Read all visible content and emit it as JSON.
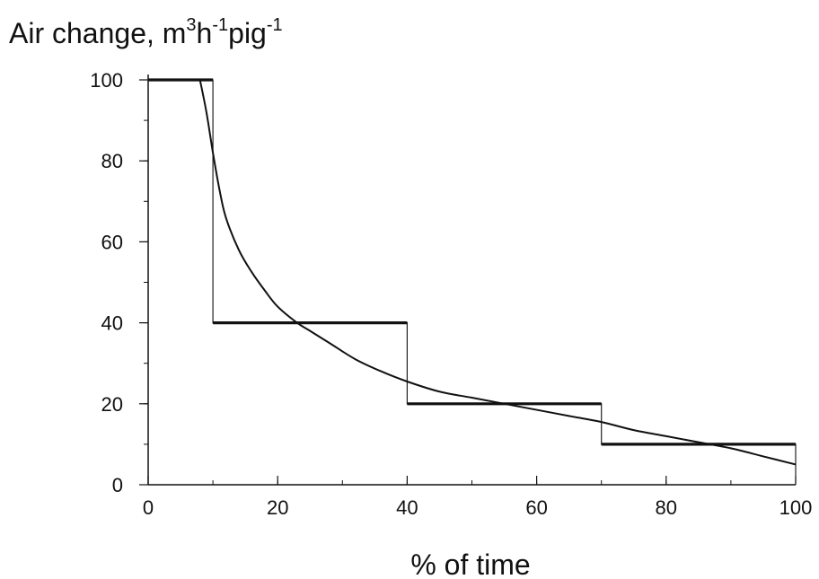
{
  "chart_data": {
    "type": "line",
    "xlabel": "% of time",
    "ylabel": {
      "parts": [
        {
          "text": "Air change, m",
          "sup": false
        },
        {
          "text": "3",
          "sup": true
        },
        {
          "text": "h",
          "sup": false
        },
        {
          "text": "-1",
          "sup": true
        },
        {
          "text": "pig",
          "sup": false
        },
        {
          "text": "-1",
          "sup": true
        }
      ]
    },
    "xlim": [
      0,
      100
    ],
    "ylim": [
      0,
      100
    ],
    "x_ticks": [
      0,
      20,
      40,
      60,
      80,
      100
    ],
    "y_ticks": [
      0,
      20,
      40,
      60,
      80,
      100
    ],
    "x_minor_step": 10,
    "y_minor_step": 10,
    "grid": false,
    "series": [
      {
        "style": "step-thin",
        "x": [
          0,
          10,
          10,
          40,
          40,
          70,
          70,
          100,
          100
        ],
        "y": [
          100,
          100,
          40,
          40,
          20,
          20,
          10,
          10,
          0
        ]
      },
      {
        "style": "segments-thick",
        "segments": [
          {
            "x": [
              0,
              10
            ],
            "y": [
              100,
              100
            ]
          },
          {
            "x": [
              10,
              40
            ],
            "y": [
              40,
              40
            ]
          },
          {
            "x": [
              40,
              70
            ],
            "y": [
              20,
              20
            ]
          },
          {
            "x": [
              70,
              100
            ],
            "y": [
              10,
              10
            ]
          }
        ]
      },
      {
        "style": "smooth-curve",
        "x": [
          8,
          9,
          10,
          11,
          12,
          14,
          16,
          18,
          20,
          23,
          25,
          28,
          32,
          36,
          40,
          45,
          50,
          55,
          60,
          65,
          70,
          75,
          80,
          85,
          90,
          95,
          100
        ],
        "y": [
          100,
          92,
          82,
          73,
          66,
          58,
          52.5,
          48,
          44,
          40,
          38,
          35,
          31,
          28,
          25.5,
          23,
          21.5,
          20,
          18.5,
          17,
          15.5,
          13.5,
          12,
          10.5,
          9,
          7,
          5
        ]
      }
    ]
  }
}
